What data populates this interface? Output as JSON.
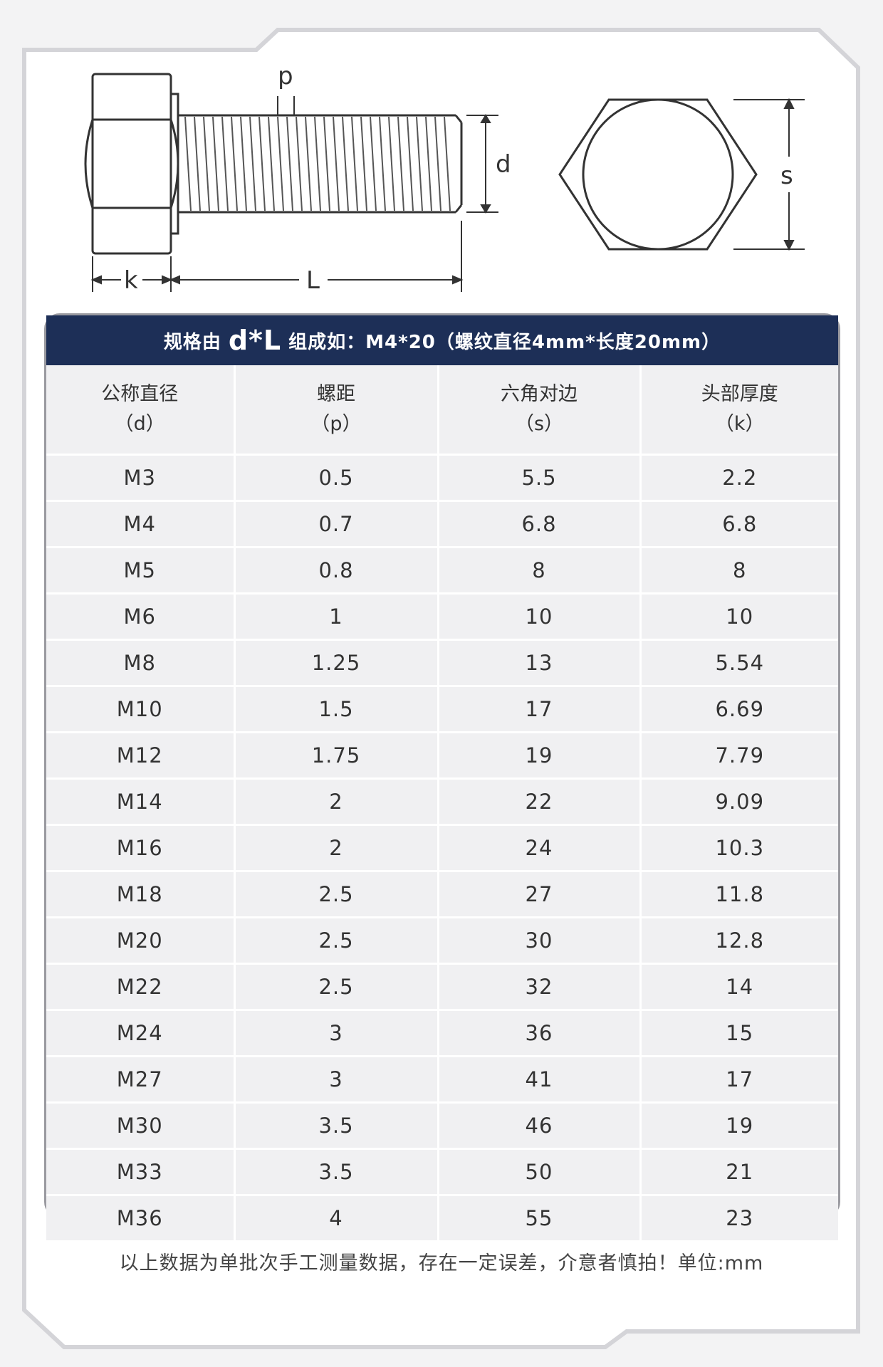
{
  "diagram": {
    "labels": {
      "pitch": "p",
      "diameter": "d",
      "head_height": "k",
      "length": "L",
      "across_flats": "s"
    }
  },
  "title": {
    "prefix": "规格由",
    "emphasis": "d*L",
    "suffix": "组成如：M4*20（螺纹直径4mm*长度20mm）"
  },
  "table": {
    "headers": [
      {
        "name": "公称直径",
        "symbol": "（d）"
      },
      {
        "name": "螺距",
        "symbol": "（p）"
      },
      {
        "name": "六角对边",
        "symbol": "（s）"
      },
      {
        "name": "头部厚度",
        "symbol": "（k）"
      }
    ],
    "rows": [
      [
        "M3",
        "0.5",
        "5.5",
        "2.2"
      ],
      [
        "M4",
        "0.7",
        "6.8",
        "6.8"
      ],
      [
        "M5",
        "0.8",
        "8",
        "8"
      ],
      [
        "M6",
        "1",
        "10",
        "10"
      ],
      [
        "M8",
        "1.25",
        "13",
        "5.54"
      ],
      [
        "M10",
        "1.5",
        "17",
        "6.69"
      ],
      [
        "M12",
        "1.75",
        "19",
        "7.79"
      ],
      [
        "M14",
        "2",
        "22",
        "9.09"
      ],
      [
        "M16",
        "2",
        "24",
        "10.3"
      ],
      [
        "M18",
        "2.5",
        "27",
        "11.8"
      ],
      [
        "M20",
        "2.5",
        "30",
        "12.8"
      ],
      [
        "M22",
        "2.5",
        "32",
        "14"
      ],
      [
        "M24",
        "3",
        "36",
        "15"
      ],
      [
        "M27",
        "3",
        "41",
        "17"
      ],
      [
        "M30",
        "3.5",
        "46",
        "19"
      ],
      [
        "M33",
        "3.5",
        "50",
        "21"
      ],
      [
        "M36",
        "4",
        "55",
        "23"
      ]
    ]
  },
  "footnote": "以上数据为单批次手工测量数据，存在一定误差，介意者慎拍！单位:mm",
  "colors": {
    "title_bar": "#1d2f57",
    "cell_bg": "#f0f0f2",
    "frame": "#d4d4d8"
  }
}
